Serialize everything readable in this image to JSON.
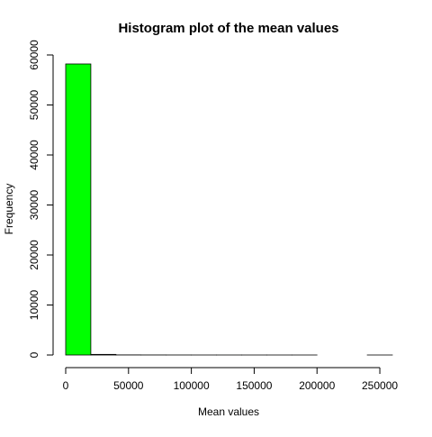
{
  "chart_data": {
    "type": "bar",
    "title": "Histogram plot of the mean values",
    "xlabel": "Mean values",
    "ylabel": "Frequency",
    "xlim": [
      0,
      260000
    ],
    "ylim": [
      0,
      60000
    ],
    "x_ticks": [
      0,
      50000,
      100000,
      150000,
      200000,
      250000
    ],
    "y_ticks": [
      0,
      10000,
      20000,
      30000,
      40000,
      50000,
      60000
    ],
    "bin_edges": [
      0,
      20000,
      40000,
      60000,
      80000,
      100000,
      120000,
      140000,
      160000,
      180000,
      200000,
      220000,
      240000,
      260000
    ],
    "values": [
      58200,
      120,
      20,
      10,
      5,
      3,
      2,
      1,
      1,
      1,
      0,
      0,
      1
    ],
    "grid": false,
    "colors": {
      "bar_fill": "#00ff00",
      "bar_stroke": "#000000"
    }
  }
}
